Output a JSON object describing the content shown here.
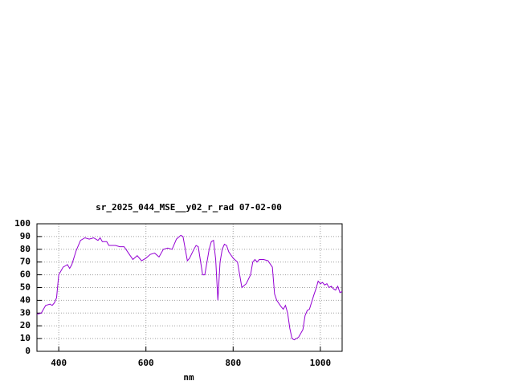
{
  "chart_data": {
    "type": "line",
    "title": "sr_2025_044_MSE__y02_r_rad 07-02-00",
    "x_label": "nm",
    "x": [
      350,
      360,
      370,
      380,
      385,
      390,
      395,
      400,
      410,
      420,
      425,
      430,
      440,
      450,
      460,
      470,
      480,
      490,
      495,
      500,
      510,
      515,
      520,
      530,
      540,
      550,
      560,
      570,
      580,
      590,
      600,
      610,
      620,
      630,
      640,
      650,
      660,
      670,
      680,
      685,
      695,
      700,
      710,
      715,
      720,
      730,
      735,
      745,
      750,
      755,
      760,
      765,
      770,
      775,
      780,
      785,
      790,
      800,
      810,
      820,
      830,
      840,
      845,
      850,
      855,
      860,
      870,
      880,
      890,
      895,
      900,
      910,
      915,
      920,
      925,
      930,
      935,
      940,
      950,
      960,
      965,
      970,
      975,
      985,
      990,
      995,
      1000,
      1005,
      1010,
      1015,
      1020,
      1025,
      1030,
      1035,
      1040,
      1045,
      1050
    ],
    "values": [
      29,
      30,
      36,
      37,
      36,
      38,
      42,
      60,
      66,
      68,
      65,
      68,
      79,
      87,
      89,
      88,
      89,
      87,
      89,
      86,
      86,
      83,
      83,
      83,
      82,
      82,
      77,
      72,
      75,
      71,
      73,
      76,
      77,
      74,
      80,
      81,
      80,
      88,
      91,
      90,
      71,
      73,
      80,
      83,
      82,
      60,
      60,
      80,
      86,
      87,
      72,
      40,
      70,
      80,
      84,
      83,
      78,
      73,
      70,
      50,
      53,
      60,
      70,
      72,
      70,
      72,
      72,
      71,
      66,
      45,
      40,
      35,
      33,
      36,
      30,
      18,
      10,
      9,
      11,
      17,
      28,
      32,
      33,
      44,
      49,
      55,
      53,
      54,
      52,
      53,
      50,
      51,
      49,
      48,
      51,
      46,
      47
    ],
    "color": "#9400d3",
    "xlim": [
      350,
      1050
    ],
    "xticks": [
      400,
      600,
      800,
      1000
    ],
    "ylim": [
      0,
      100
    ],
    "yticks": [
      0,
      10,
      20,
      30,
      40,
      50,
      60,
      70,
      80,
      90,
      100
    ],
    "grid": true
  }
}
